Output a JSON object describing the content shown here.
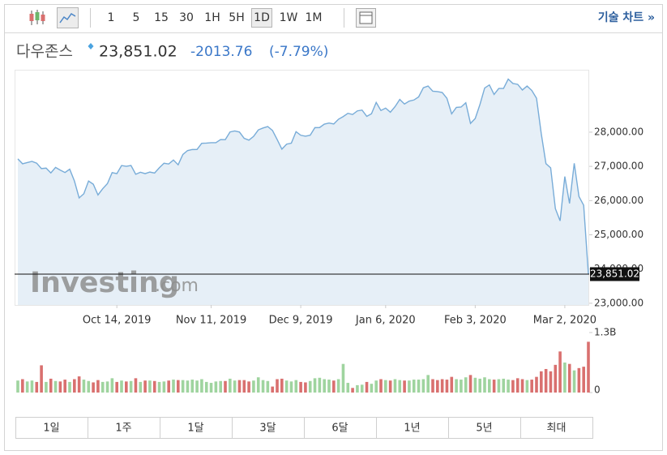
{
  "toolbar": {
    "intervals": [
      "1",
      "5",
      "15",
      "30",
      "1H",
      "5H",
      "1D",
      "1W",
      "1M"
    ],
    "active_interval": "1D",
    "technical": "기술 차트 »"
  },
  "header": {
    "name": "다우존스",
    "price": "23,851.02",
    "change": "-2013.76",
    "change_percent": "(-7.79%)"
  },
  "watermark": {
    "brand": "Investing",
    "domain": ".com"
  },
  "chart_data": {
    "type": "area",
    "color": "#78acd8",
    "fill_color": "#e6eff7",
    "grid": false,
    "x": [
      "2019-09-13",
      "2019-09-16",
      "2019-09-17",
      "2019-09-18",
      "2019-09-19",
      "2019-09-20",
      "2019-09-23",
      "2019-09-24",
      "2019-09-25",
      "2019-09-26",
      "2019-09-27",
      "2019-09-30",
      "2019-10-01",
      "2019-10-02",
      "2019-10-03",
      "2019-10-04",
      "2019-10-07",
      "2019-10-08",
      "2019-10-09",
      "2019-10-10",
      "2019-10-11",
      "2019-10-14",
      "2019-10-15",
      "2019-10-16",
      "2019-10-17",
      "2019-10-18",
      "2019-10-21",
      "2019-10-22",
      "2019-10-23",
      "2019-10-24",
      "2019-10-25",
      "2019-10-28",
      "2019-10-29",
      "2019-10-30",
      "2019-10-31",
      "2019-11-01",
      "2019-11-04",
      "2019-11-05",
      "2019-11-06",
      "2019-11-07",
      "2019-11-08",
      "2019-11-11",
      "2019-11-12",
      "2019-11-13",
      "2019-11-14",
      "2019-11-15",
      "2019-11-18",
      "2019-11-19",
      "2019-11-20",
      "2019-11-21",
      "2019-11-22",
      "2019-11-25",
      "2019-11-26",
      "2019-11-27",
      "2019-11-29",
      "2019-12-02",
      "2019-12-03",
      "2019-12-04",
      "2019-12-05",
      "2019-12-06",
      "2019-12-09",
      "2019-12-10",
      "2019-12-11",
      "2019-12-12",
      "2019-12-13",
      "2019-12-16",
      "2019-12-17",
      "2019-12-18",
      "2019-12-19",
      "2019-12-20",
      "2019-12-23",
      "2019-12-24",
      "2019-12-26",
      "2019-12-27",
      "2019-12-30",
      "2019-12-31",
      "2020-01-02",
      "2020-01-03",
      "2020-01-06",
      "2020-01-07",
      "2020-01-08",
      "2020-01-09",
      "2020-01-10",
      "2020-01-13",
      "2020-01-14",
      "2020-01-15",
      "2020-01-16",
      "2020-01-17",
      "2020-01-21",
      "2020-01-22",
      "2020-01-23",
      "2020-01-24",
      "2020-01-27",
      "2020-01-28",
      "2020-01-29",
      "2020-01-30",
      "2020-01-31",
      "2020-02-03",
      "2020-02-04",
      "2020-02-05",
      "2020-02-06",
      "2020-02-07",
      "2020-02-10",
      "2020-02-11",
      "2020-02-12",
      "2020-02-13",
      "2020-02-14",
      "2020-02-18",
      "2020-02-19",
      "2020-02-20",
      "2020-02-21",
      "2020-02-24",
      "2020-02-25",
      "2020-02-26",
      "2020-02-27",
      "2020-02-28",
      "2020-03-02",
      "2020-03-03",
      "2020-03-04",
      "2020-03-05",
      "2020-03-06",
      "2020-03-09"
    ],
    "values": [
      27219,
      27076,
      27110,
      27147,
      27094,
      26935,
      26949,
      26808,
      26970,
      26891,
      26820,
      26917,
      26573,
      26078,
      26201,
      26573,
      26478,
      26165,
      26347,
      26497,
      26817,
      26787,
      27024,
      27002,
      27026,
      26770,
      26828,
      26788,
      26834,
      26806,
      26958,
      27091,
      27071,
      27186,
      27046,
      27347,
      27462,
      27492,
      27493,
      27675,
      27681,
      27691,
      27691,
      27784,
      27782,
      28005,
      28036,
      28004,
      27821,
      27766,
      27876,
      28066,
      28121,
      28164,
      28051,
      27783,
      27503,
      27650,
      27678,
      28015,
      27909,
      27881,
      27911,
      28132,
      28135,
      28235,
      28267,
      28239,
      28377,
      28455,
      28551,
      28516,
      28621,
      28645,
      28462,
      28538,
      28868,
      28634,
      28703,
      28583,
      28745,
      28956,
      28823,
      28907,
      28940,
      29030,
      29297,
      29348,
      29196,
      29186,
      29160,
      28990,
      28535,
      28723,
      28734,
      28859,
      28256,
      28400,
      28807,
      29290,
      29380,
      29103,
      29276,
      29276,
      29551,
      29423,
      29398,
      29232,
      29348,
      29219,
      28992,
      27961,
      27081,
      26957,
      25766,
      25409,
      26703,
      25917,
      27091,
      26121,
      25864.78,
      23851.02
    ],
    "ylim": [
      22950,
      29800
    ],
    "yticks": [
      {
        "value": 23000,
        "label": "23,000.00"
      },
      {
        "value": 24000,
        "label": "24,000.00"
      },
      {
        "value": 25000,
        "label": "25,000.00"
      },
      {
        "value": 26000,
        "label": "26,000.00"
      },
      {
        "value": 27000,
        "label": "27,000.00"
      },
      {
        "value": 28000,
        "label": "28,000.00"
      }
    ],
    "xticks": [
      {
        "value": "2019-10-14",
        "label": "Oct 14, 2019"
      },
      {
        "value": "2019-11-11",
        "label": "Nov 11, 2019"
      },
      {
        "value": "2019-12-09",
        "label": "Dec 9, 2019"
      },
      {
        "value": "2020-01-06",
        "label": "Jan 6, 2020"
      },
      {
        "value": "2020-02-03",
        "label": "Feb 3, 2020"
      },
      {
        "value": "2020-03-02",
        "label": "Mar 2, 2020"
      }
    ],
    "price_line": {
      "value": 23851.02,
      "label": "23,851.02"
    },
    "volume": {
      "type": "bar",
      "up_color": "#9fd49f",
      "down_color": "#d9706f",
      "values": [
        260000000.0,
        290000000.0,
        240000000.0,
        260000000.0,
        230000000.0,
        590000000.0,
        230000000.0,
        300000000.0,
        250000000.0,
        240000000.0,
        280000000.0,
        230000000.0,
        290000000.0,
        350000000.0,
        280000000.0,
        250000000.0,
        220000000.0,
        270000000.0,
        230000000.0,
        240000000.0,
        310000000.0,
        230000000.0,
        260000000.0,
        240000000.0,
        250000000.0,
        310000000.0,
        230000000.0,
        260000000.0,
        260000000.0,
        250000000.0,
        230000000.0,
        240000000.0,
        260000000.0,
        280000000.0,
        270000000.0,
        270000000.0,
        260000000.0,
        280000000.0,
        260000000.0,
        290000000.0,
        230000000.0,
        210000000.0,
        240000000.0,
        250000000.0,
        250000000.0,
        300000000.0,
        260000000.0,
        270000000.0,
        270000000.0,
        240000000.0,
        260000000.0,
        330000000.0,
        270000000.0,
        250000000.0,
        130000000.0,
        290000000.0,
        300000000.0,
        260000000.0,
        240000000.0,
        270000000.0,
        230000000.0,
        220000000.0,
        250000000.0,
        310000000.0,
        320000000.0,
        290000000.0,
        280000000.0,
        260000000.0,
        290000000.0,
        620000000.0,
        210000000.0,
        100000000.0,
        160000000.0,
        170000000.0,
        230000000.0,
        190000000.0,
        260000000.0,
        290000000.0,
        270000000.0,
        260000000.0,
        290000000.0,
        270000000.0,
        260000000.0,
        260000000.0,
        280000000.0,
        280000000.0,
        290000000.0,
        380000000.0,
        290000000.0,
        270000000.0,
        290000000.0,
        280000000.0,
        340000000.0,
        290000000.0,
        280000000.0,
        330000000.0,
        380000000.0,
        320000000.0,
        300000000.0,
        330000000.0,
        290000000.0,
        280000000.0,
        290000000.0,
        300000000.0,
        280000000.0,
        270000000.0,
        310000000.0,
        290000000.0,
        270000000.0,
        280000000.0,
        340000000.0,
        460000000.0,
        510000000.0,
        460000000.0,
        600000000.0,
        890000000.0,
        650000000.0,
        620000000.0,
        480000000.0,
        530000000.0,
        560000000.0,
        1100000000.0
      ],
      "ylim": [
        0,
        1300000000.0
      ],
      "yticks": [
        0,
        {
          "value": 1300000000.0,
          "label": "1.3B"
        }
      ]
    }
  },
  "ranges": [
    "1일",
    "1주",
    "1달",
    "3달",
    "6달",
    "1년",
    "5년",
    "최대"
  ]
}
